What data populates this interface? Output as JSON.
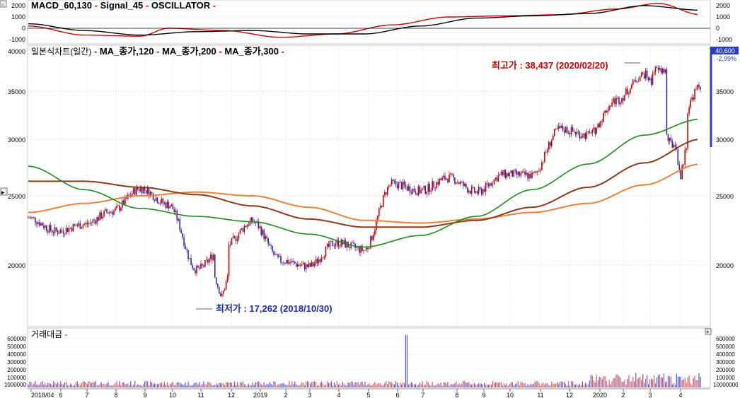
{
  "macd": {
    "legend": [
      {
        "text": "MACD_60,130",
        "color": "#000000"
      },
      {
        "text": "Signal_45",
        "color": "#cc0000"
      },
      {
        "text": "OSCILLATOR",
        "color": "#000000"
      }
    ],
    "right_ticks": [
      "2000",
      "1000",
      "0",
      "-1000"
    ],
    "left_ticks": [
      "2000",
      "1000",
      "0",
      "-1000"
    ]
  },
  "price": {
    "legend": [
      {
        "text": "일본식차트(일간)",
        "color": "#000000"
      },
      {
        "text": "MA_종가,120",
        "color": "#000000"
      },
      {
        "text": "MA_종가,200",
        "color": "#000000"
      },
      {
        "text": "MA_종가,300",
        "color": "#000000"
      }
    ],
    "left_ticks": [
      "40000",
      "35000",
      "30000",
      "25000",
      "20000"
    ],
    "right_ticks": [
      "35000",
      "30000",
      "25000",
      "20000"
    ],
    "current_price": "40,600",
    "current_change": "-2.99%",
    "high_label": "최고가 : 38,437 (2020/02/20)",
    "low_label": "최저가 : 17,262 (2018/10/30)"
  },
  "volume": {
    "legend": [
      {
        "text": "거래대금",
        "color": "#000000"
      }
    ],
    "left_ticks": [
      "600000",
      "500000",
      "400000",
      "300000",
      "200000",
      "100000",
      "1000000"
    ],
    "right_ticks": [
      "600000",
      "500000",
      "400000",
      "300000",
      "200000",
      "100000",
      "10000000"
    ]
  },
  "x_axis": {
    "labels": [
      "2018/04",
      "6",
      "7",
      "8",
      "9",
      "10",
      "11",
      "12",
      "2019",
      "2",
      "3",
      "4",
      "5",
      "6",
      "7",
      "8",
      "9",
      "10",
      "11",
      "12",
      "2020",
      "2",
      "3",
      "4"
    ]
  },
  "colors": {
    "up": "#cc0000",
    "down": "#2a2aa8",
    "ma120": "#1e8c1e",
    "ma200": "#8b3a1a",
    "ma300": "#e8823a",
    "high_label": "#cc0000",
    "low_label": "#1a2aa0",
    "current_box": "#2a3fbf"
  },
  "chart_data": {
    "type": "candlestick",
    "x_range": [
      "2018-04",
      "2020-04"
    ],
    "ylim": [
      17000,
      40600
    ],
    "series": [
      {
        "name": "MA_종가,120",
        "values_by_month": [
          {
            "x": "2018-04",
            "y": 27500
          },
          {
            "x": "2018-06",
            "y": 25500
          },
          {
            "x": "2018-08",
            "y": 24000
          },
          {
            "x": "2018-10",
            "y": 23400
          },
          {
            "x": "2018-12",
            "y": 23000
          },
          {
            "x": "2019-02",
            "y": 22100
          },
          {
            "x": "2019-04",
            "y": 21200
          },
          {
            "x": "2019-06",
            "y": 22000
          },
          {
            "x": "2019-08",
            "y": 23400
          },
          {
            "x": "2019-10",
            "y": 25500
          },
          {
            "x": "2019-12",
            "y": 27700
          },
          {
            "x": "2020-02",
            "y": 30400
          },
          {
            "x": "2020-04",
            "y": 32000
          }
        ]
      },
      {
        "name": "MA_종가,200",
        "values_by_month": [
          {
            "x": "2018-04",
            "y": 26200
          },
          {
            "x": "2018-06",
            "y": 26200
          },
          {
            "x": "2018-08",
            "y": 25700
          },
          {
            "x": "2018-10",
            "y": 25100
          },
          {
            "x": "2018-12",
            "y": 24200
          },
          {
            "x": "2019-02",
            "y": 23200
          },
          {
            "x": "2019-04",
            "y": 22600
          },
          {
            "x": "2019-06",
            "y": 22600
          },
          {
            "x": "2019-08",
            "y": 23100
          },
          {
            "x": "2019-10",
            "y": 24100
          },
          {
            "x": "2019-12",
            "y": 25700
          },
          {
            "x": "2020-02",
            "y": 27800
          },
          {
            "x": "2020-04",
            "y": 30000
          }
        ]
      },
      {
        "name": "MA_종가,300",
        "values_by_month": [
          {
            "x": "2018-04",
            "y": 23700
          },
          {
            "x": "2018-06",
            "y": 24400
          },
          {
            "x": "2018-08",
            "y": 25000
          },
          {
            "x": "2018-10",
            "y": 25300
          },
          {
            "x": "2018-12",
            "y": 25000
          },
          {
            "x": "2019-02",
            "y": 24100
          },
          {
            "x": "2019-04",
            "y": 23100
          },
          {
            "x": "2019-06",
            "y": 22900
          },
          {
            "x": "2019-08",
            "y": 23200
          },
          {
            "x": "2019-10",
            "y": 23700
          },
          {
            "x": "2019-12",
            "y": 24400
          },
          {
            "x": "2020-02",
            "y": 25900
          },
          {
            "x": "2020-04",
            "y": 27700
          }
        ]
      },
      {
        "name": "close",
        "values_by_month": [
          {
            "x": "2018-04",
            "y": 23300
          },
          {
            "x": "2018-05",
            "y": 22300
          },
          {
            "x": "2018-06",
            "y": 22800
          },
          {
            "x": "2018-07",
            "y": 23800
          },
          {
            "x": "2018-08",
            "y": 25600
          },
          {
            "x": "2018-09",
            "y": 24300
          },
          {
            "x": "2018-10",
            "y": 19700
          },
          {
            "x": "2018-11",
            "y": 21200
          },
          {
            "x": "2018-12",
            "y": 23000
          },
          {
            "x": "2019-01",
            "y": 20300
          },
          {
            "x": "2019-02",
            "y": 19900
          },
          {
            "x": "2019-03",
            "y": 21500
          },
          {
            "x": "2019-04",
            "y": 21000
          },
          {
            "x": "2019-05",
            "y": 26000
          },
          {
            "x": "2019-06",
            "y": 25400
          },
          {
            "x": "2019-07",
            "y": 26500
          },
          {
            "x": "2019-08",
            "y": 25300
          },
          {
            "x": "2019-09",
            "y": 26800
          },
          {
            "x": "2019-10",
            "y": 26700
          },
          {
            "x": "2019-11",
            "y": 31000
          },
          {
            "x": "2019-12",
            "y": 30400
          },
          {
            "x": "2020-01",
            "y": 34000
          },
          {
            "x": "2020-02",
            "y": 37000
          },
          {
            "x": "2020-03",
            "y": 29500
          },
          {
            "x": "2020-04",
            "y": 35500
          }
        ]
      }
    ],
    "volume_spikes": [
      {
        "x": "2019-05",
        "y": 650000
      },
      {
        "x": "2020-03",
        "y": 280000
      }
    ]
  }
}
